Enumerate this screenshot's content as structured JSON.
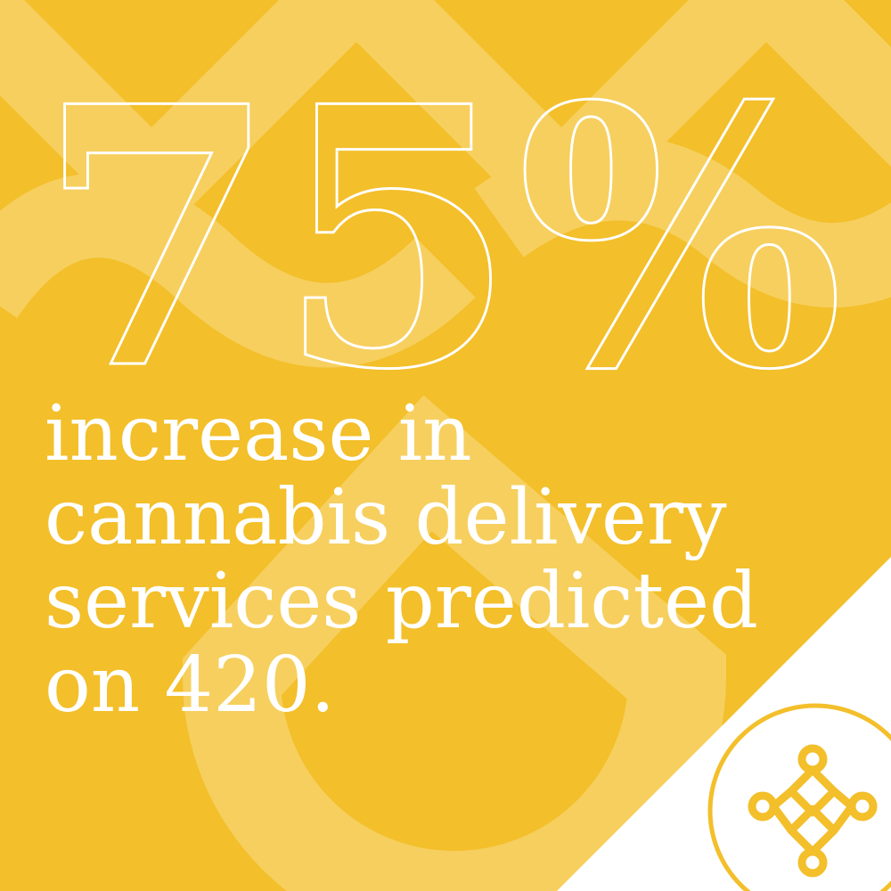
{
  "stat": {
    "value": "75%"
  },
  "caption": {
    "lines": [
      "increase in",
      "cannabis delivery",
      "services predicted",
      "on 420."
    ]
  },
  "colors": {
    "background": "#f3bf2a",
    "pattern": "#f6cf5e",
    "text": "#ffffff",
    "corner": "#ffffff",
    "logo": "#f3bf2a"
  },
  "logo": {
    "icon": "knot-logo-icon"
  }
}
